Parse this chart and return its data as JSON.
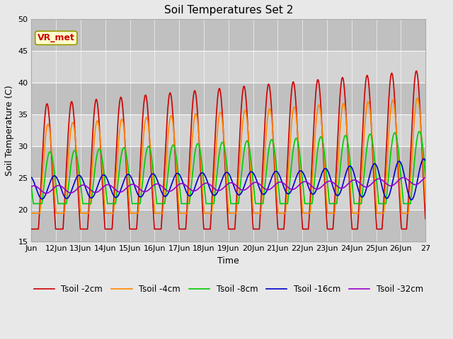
{
  "title": "Soil Temperatures Set 2",
  "xlabel": "Time",
  "ylabel": "Soil Temperature (C)",
  "ylim": [
    15,
    50
  ],
  "xlim": [
    0,
    16
  ],
  "yticks": [
    15,
    20,
    25,
    30,
    35,
    40,
    45,
    50
  ],
  "xtick_labels": [
    "Jun",
    "12Jun",
    "13Jun",
    "14Jun",
    "15Jun",
    "16Jun",
    "17Jun",
    "18Jun",
    "19Jun",
    "20Jun",
    "21Jun",
    "22Jun",
    "23Jun",
    "24Jun",
    "25Jun",
    "26Jun",
    "27"
  ],
  "legend_labels": [
    "Tsoil -2cm",
    "Tsoil -4cm",
    "Tsoil -8cm",
    "Tsoil -16cm",
    "Tsoil -32cm"
  ],
  "line_colors": [
    "#cc0000",
    "#ff8800",
    "#00cc00",
    "#0000cc",
    "#9900cc"
  ],
  "annotation_text": "VR_met",
  "annotation_color": "#cc0000",
  "annotation_bgcolor": "#ffffcc",
  "annotation_edgecolor": "#999900",
  "fig_facecolor": "#e8e8e8",
  "plot_facecolor": "#d4d4d4",
  "band_color_dark": "#c0c0c0",
  "band_color_light": "#d4d4d4",
  "title_fontsize": 11,
  "label_fontsize": 9,
  "tick_fontsize": 8
}
